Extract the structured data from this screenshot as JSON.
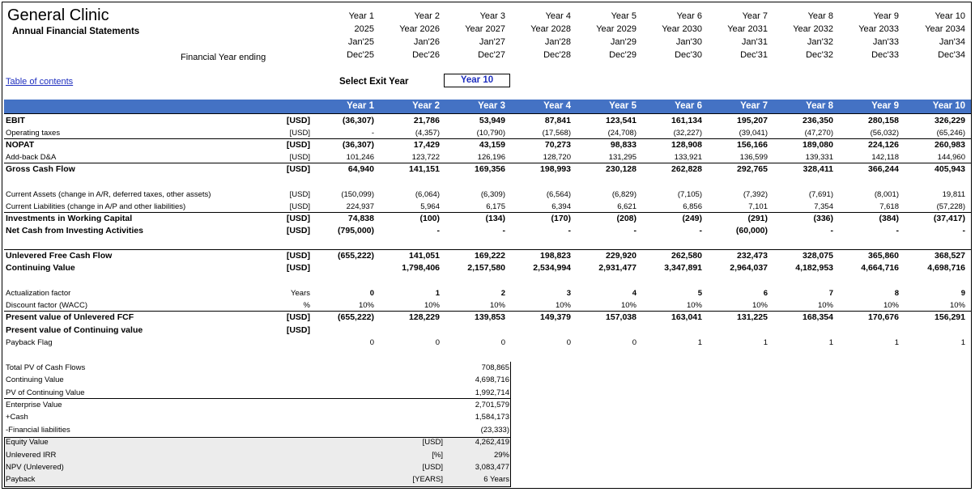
{
  "header": {
    "title": "General Clinic",
    "subtitle": "Annual Financial Statements",
    "fy_label": "Financial Year ending",
    "years": [
      {
        "label": "Year 1",
        "year": "2025",
        "start": "Jan'25",
        "end": "Dec'25"
      },
      {
        "label": "Year 2",
        "year": "Year 2026",
        "start": "Jan'26",
        "end": "Dec'26"
      },
      {
        "label": "Year 3",
        "year": "Year 2027",
        "start": "Jan'27",
        "end": "Dec'27"
      },
      {
        "label": "Year 4",
        "year": "Year 2028",
        "start": "Jan'28",
        "end": "Dec'28"
      },
      {
        "label": "Year 5",
        "year": "Year 2029",
        "start": "Jan'29",
        "end": "Dec'29"
      },
      {
        "label": "Year 6",
        "year": "Year 2030",
        "start": "Jan'30",
        "end": "Dec'30"
      },
      {
        "label": "Year 7",
        "year": "Year 2031",
        "start": "Jan'31",
        "end": "Dec'31"
      },
      {
        "label": "Year 8",
        "year": "Year 2032",
        "start": "Jan'32",
        "end": "Dec'32"
      },
      {
        "label": "Year 9",
        "year": "Year 2033",
        "start": "Jan'33",
        "end": "Dec'33"
      },
      {
        "label": "Year 10",
        "year": "Year 2034",
        "start": "Jan'34",
        "end": "Dec'34"
      }
    ]
  },
  "toc_link": "Table of contents",
  "exit": {
    "label": "Select Exit Year",
    "value": "Year 10"
  },
  "band_years": [
    "Year 1",
    "Year 2",
    "Year 3",
    "Year 4",
    "Year 5",
    "Year 6",
    "Year 7",
    "Year 8",
    "Year 9",
    "Year 10"
  ],
  "rows": [
    {
      "label": "EBIT",
      "unit": "[USD]",
      "bold": true,
      "values": [
        "(36,307)",
        "21,786",
        "53,949",
        "87,841",
        "123,541",
        "161,134",
        "195,207",
        "236,350",
        "280,158",
        "326,229"
      ]
    },
    {
      "label": "Operating taxes",
      "unit": "[USD]",
      "bold": false,
      "values": [
        "-",
        "(4,357)",
        "(10,790)",
        "(17,568)",
        "(24,708)",
        "(32,227)",
        "(39,041)",
        "(47,270)",
        "(56,032)",
        "(65,246)"
      ]
    },
    {
      "label": "NOPAT",
      "unit": "[USD]",
      "bold": true,
      "values": [
        "(36,307)",
        "17,429",
        "43,159",
        "70,273",
        "98,833",
        "128,908",
        "156,166",
        "189,080",
        "224,126",
        "260,983"
      ]
    },
    {
      "label": "Add-back D&A",
      "unit": "[USD]",
      "bold": false,
      "values": [
        "101,246",
        "123,722",
        "126,196",
        "128,720",
        "131,295",
        "133,921",
        "136,599",
        "139,331",
        "142,118",
        "144,960"
      ]
    },
    {
      "label": "Gross Cash Flow",
      "unit": "[USD]",
      "bold": true,
      "values": [
        "64,940",
        "141,151",
        "169,356",
        "198,993",
        "230,128",
        "262,828",
        "292,765",
        "328,411",
        "366,244",
        "405,943"
      ]
    },
    {
      "label": "Current Assets (change in A/R, deferred taxes, other assets)",
      "unit": "[USD]",
      "bold": false,
      "values": [
        "(150,099)",
        "(6,064)",
        "(6,309)",
        "(6,564)",
        "(6,829)",
        "(7,105)",
        "(7,392)",
        "(7,691)",
        "(8,001)",
        "19,811"
      ]
    },
    {
      "label": "Current Liabilities (change in A/P and other liabilities)",
      "unit": "[USD]",
      "bold": false,
      "values": [
        "224,937",
        "5,964",
        "6,175",
        "6,394",
        "6,621",
        "6,856",
        "7,101",
        "7,354",
        "7,618",
        "(57,228)"
      ]
    },
    {
      "label": "Investments in Working Capital",
      "unit": "[USD]",
      "bold": true,
      "values": [
        "74,838",
        "(100)",
        "(134)",
        "(170)",
        "(208)",
        "(249)",
        "(291)",
        "(336)",
        "(384)",
        "(37,417)"
      ]
    },
    {
      "label": "Net Cash from Investing Activities",
      "unit": "[USD]",
      "bold": true,
      "values": [
        "(795,000)",
        "-",
        "-",
        "-",
        "-",
        "-",
        "(60,000)",
        "-",
        "-",
        "-"
      ]
    },
    {
      "label": "Unlevered Free Cash Flow",
      "unit": "[USD]",
      "bold": true,
      "values": [
        "(655,222)",
        "141,051",
        "169,222",
        "198,823",
        "229,920",
        "262,580",
        "232,473",
        "328,075",
        "365,860",
        "368,527"
      ]
    },
    {
      "label": "Continuing Value",
      "unit": "[USD]",
      "bold": true,
      "values": [
        "",
        "1,798,406",
        "2,157,580",
        "2,534,994",
        "2,931,477",
        "3,347,891",
        "2,964,037",
        "4,182,953",
        "4,664,716",
        "4,698,716"
      ]
    },
    {
      "label": "Actualization factor",
      "unit": "Years",
      "bold": false,
      "valbold": true,
      "values": [
        "0",
        "1",
        "2",
        "3",
        "4",
        "5",
        "6",
        "7",
        "8",
        "9"
      ]
    },
    {
      "label": "Discount factor (WACC)",
      "unit": "%",
      "bold": false,
      "values": [
        "10%",
        "10%",
        "10%",
        "10%",
        "10%",
        "10%",
        "10%",
        "10%",
        "10%",
        "10%"
      ]
    },
    {
      "label": "Present value of Unlevered FCF",
      "unit": "[USD]",
      "bold": true,
      "values": [
        "(655,222)",
        "128,229",
        "139,853",
        "149,379",
        "157,038",
        "163,041",
        "131,225",
        "168,354",
        "170,676",
        "156,291"
      ]
    },
    {
      "label": "Present value of Continuing  value",
      "unit": "[USD]",
      "bold": true,
      "values": [
        "",
        "",
        "",
        "",
        "",
        "",
        "",
        "",
        "",
        ""
      ]
    },
    {
      "label": "Payback Flag",
      "unit": "",
      "bold": false,
      "values": [
        "0",
        "0",
        "0",
        "0",
        "0",
        "1",
        "1",
        "1",
        "1",
        "1"
      ]
    }
  ],
  "summary": [
    {
      "label": "Total PV of Cash Flows",
      "unit": "",
      "value": "708,865"
    },
    {
      "label": "Continuing Value",
      "unit": "",
      "value": "4,698,716"
    },
    {
      "label": "PV of Continuing Value",
      "unit": "",
      "value": "1,992,714"
    },
    {
      "label": "Enterprise Value",
      "unit": "",
      "value": "2,701,579"
    },
    {
      "label": "+Cash",
      "unit": "",
      "value": "1,584,173"
    },
    {
      "label": "-Financial liabilities",
      "unit": "",
      "value": "(23,333)"
    },
    {
      "label": "Equity Value",
      "unit": "[USD]",
      "value": "4,262,419"
    },
    {
      "label": "Unlevered IRR",
      "unit": "[%]",
      "value": "29%"
    },
    {
      "label": "NPV (Unlevered)",
      "unit": "[USD]",
      "value": "3,083,477"
    },
    {
      "label": "Payback",
      "unit": "[YEARS]",
      "value": "6 Years"
    }
  ],
  "colors": {
    "band": "#4472c4",
    "link": "#1f2fbf",
    "summary_bg": "#ececec"
  }
}
